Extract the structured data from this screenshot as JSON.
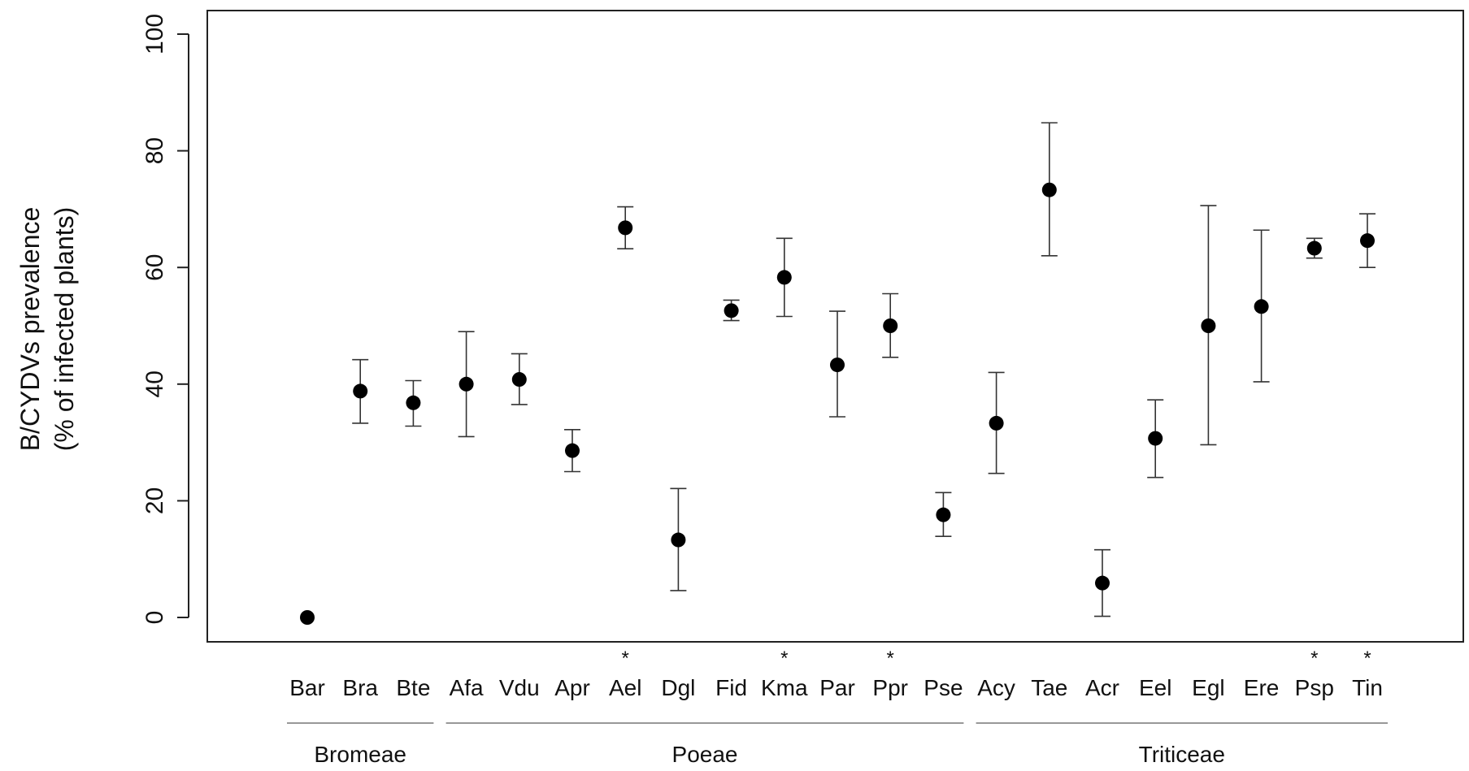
{
  "chart_data": {
    "type": "scatter",
    "title": "",
    "ylabel": "B/CYDVs prevalence",
    "ylabel2": "(% of infected plants)",
    "xlabel": "",
    "ylim": [
      0,
      100
    ],
    "yticks": [
      0,
      20,
      40,
      60,
      80,
      100
    ],
    "grid": false,
    "legend": "none",
    "colors": {
      "points": "#000000",
      "axes": "#222222",
      "errorbars": "#333333"
    },
    "categories": [
      "Bar",
      "Bra",
      "Bte",
      "Afa",
      "Vdu",
      "Apr",
      "Ael",
      "Dgl",
      "Fid",
      "Kma",
      "Par",
      "Ppr",
      "Pse",
      "Acy",
      "Tae",
      "Acr",
      "Eel",
      "Egl",
      "Ere",
      "Psp",
      "Tin"
    ],
    "values": [
      0,
      38.8,
      36.8,
      40.0,
      40.8,
      28.6,
      66.8,
      13.3,
      52.6,
      58.3,
      43.3,
      50.0,
      17.6,
      33.3,
      73.3,
      5.9,
      30.7,
      50.0,
      53.3,
      63.3,
      64.6
    ],
    "lower": [
      null,
      33.3,
      32.8,
      31.0,
      36.5,
      25.0,
      63.2,
      4.6,
      50.9,
      51.6,
      34.4,
      44.6,
      13.9,
      24.7,
      62.0,
      0.2,
      24.0,
      29.6,
      40.4,
      61.6,
      60.0
    ],
    "upper": [
      null,
      44.2,
      40.6,
      49.0,
      45.2,
      32.2,
      70.4,
      22.1,
      54.4,
      65.0,
      52.5,
      55.5,
      21.4,
      42.0,
      84.8,
      11.6,
      37.3,
      70.6,
      66.4,
      65.0,
      69.2
    ],
    "marked": [
      "Ael",
      "Kma",
      "Ppr",
      "Psp",
      "Tin"
    ],
    "marker_symbol": "*",
    "groups": [
      {
        "name": "Bromeae",
        "members": [
          "Bar",
          "Bra",
          "Bte"
        ]
      },
      {
        "name": "Poeae",
        "members": [
          "Afa",
          "Vdu",
          "Apr",
          "Ael",
          "Dgl",
          "Fid",
          "Kma",
          "Par",
          "Ppr",
          "Pse"
        ]
      },
      {
        "name": "Triticeae",
        "members": [
          "Acy",
          "Tae",
          "Acr",
          "Eel",
          "Egl",
          "Ere",
          "Psp",
          "Tin"
        ]
      }
    ]
  }
}
